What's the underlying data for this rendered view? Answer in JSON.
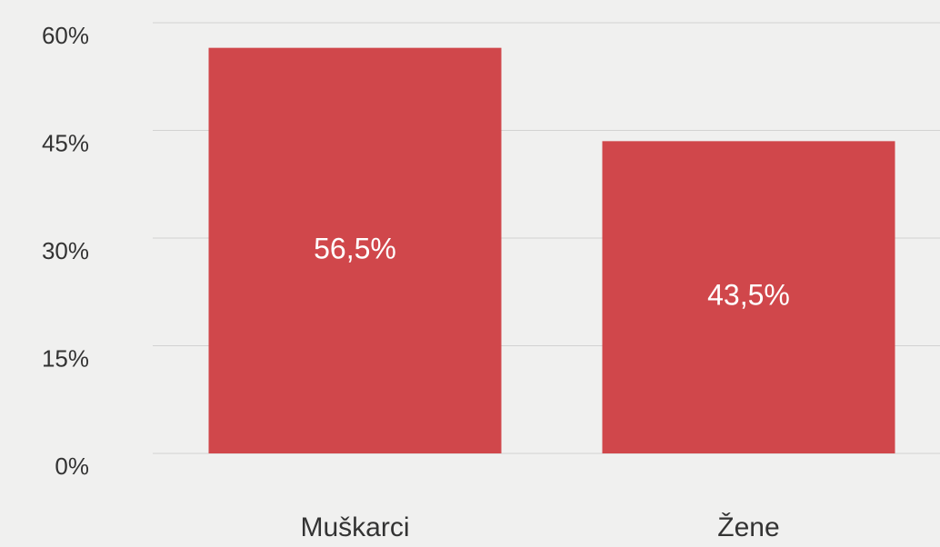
{
  "chart_data": {
    "type": "bar",
    "categories": [
      "Muškarci",
      "Žene"
    ],
    "values": [
      56.5,
      43.5
    ],
    "value_labels": [
      "56,5%",
      "43,5%"
    ],
    "color": "#d0474b",
    "ylim": [
      0,
      60
    ],
    "yticks": [
      {
        "value": 0,
        "label": "0%"
      },
      {
        "value": 15,
        "label": "15%"
      },
      {
        "value": 30,
        "label": "30%"
      },
      {
        "value": 45,
        "label": "45%"
      },
      {
        "value": 60,
        "label": "60%"
      }
    ],
    "grid": true
  }
}
